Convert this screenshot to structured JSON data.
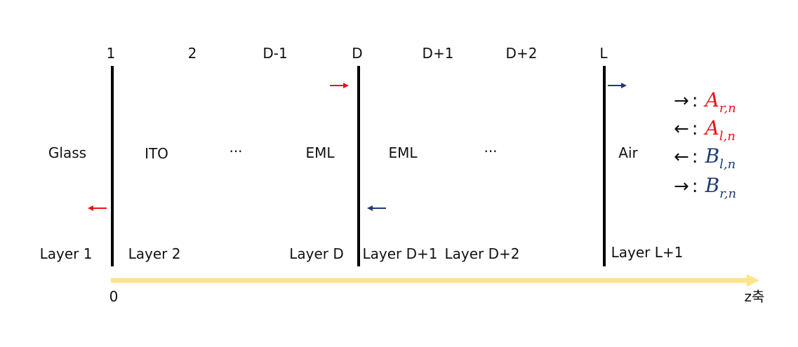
{
  "colors": {
    "red": "#e8141b",
    "navy": "#1f3b73",
    "axis": "#fde58a",
    "line": "#000000"
  },
  "interfaces": {
    "1": "1",
    "2": "2",
    "d_minus_1": "D-1",
    "d": "D",
    "d_plus_1": "D+1",
    "d_plus_2": "D+2",
    "l": "L"
  },
  "materials": {
    "glass": "Glass",
    "ito": "ITO",
    "ellipsis_left": "···",
    "eml_left": "EML",
    "eml_right": "EML",
    "ellipsis_right": "···",
    "air": "Air"
  },
  "layers": {
    "layer_1": "Layer 1",
    "layer_2": "Layer 2",
    "layer_d": "Layer D",
    "layer_d_plus_1": "Layer D+1",
    "layer_d_plus_2": "Layer D+2",
    "layer_l_plus_1": "Layer L+1"
  },
  "axis": {
    "origin": "0",
    "label": "z축"
  },
  "legend": [
    {
      "arrow": "→",
      "colon": ":",
      "letter": "A",
      "subscript": "r,n",
      "color": "red"
    },
    {
      "arrow": "←",
      "colon": ":",
      "letter": "A",
      "subscript": "l,n",
      "color": "red"
    },
    {
      "arrow": "←",
      "colon": ":",
      "letter": "B",
      "subscript": "l,n",
      "color": "navy"
    },
    {
      "arrow": "→",
      "colon": ":",
      "letter": "B",
      "subscript": "r,n",
      "color": "navy"
    }
  ]
}
